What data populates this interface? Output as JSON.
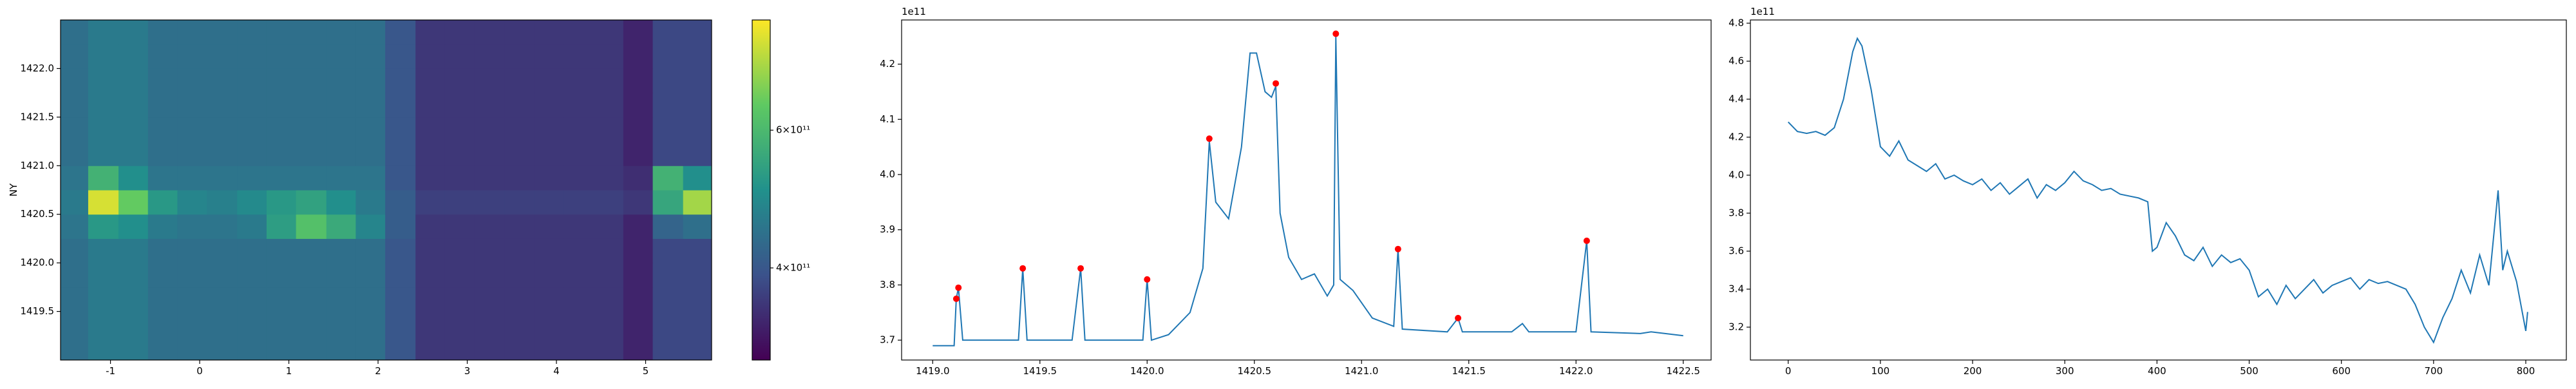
{
  "chart_data": [
    {
      "type": "heatmap",
      "ylabel": "NY",
      "xlim": [
        -1.56,
        5.74
      ],
      "ylim": [
        1419.0,
        1422.5
      ],
      "xticks": [
        -1,
        0,
        1,
        2,
        3,
        4,
        5
      ],
      "yticks": [
        1419.5,
        {
          "value": 1420,
          "label": "1420.0"
        },
        1420.5,
        {
          "value": 1421,
          "label": "1421.0"
        },
        1421.5,
        {
          "value": 1422,
          "label": "1422.0"
        }
      ],
      "xbins": [
        -1.56,
        -1.25,
        -0.91,
        -0.58,
        -0.25,
        0.08,
        0.42,
        0.75,
        1.08,
        1.42,
        1.75,
        2.08,
        2.42,
        2.75,
        3.08,
        3.42,
        3.75,
        4.08,
        4.42,
        4.75,
        5.08,
        5.42,
        5.74
      ],
      "ybins": [
        1419.0,
        1419.25,
        1419.5,
        1419.75,
        1420.0,
        1420.25,
        1420.5,
        1420.75,
        1421.0,
        1421.25,
        1421.5,
        1421.75,
        1422.0,
        1422.25,
        1422.5
      ],
      "clim": [
        305000000000.0,
        830000000000.0
      ],
      "color_scale": "log",
      "colormap": "viridis",
      "cticks": [
        {
          "value": 400000000000.0,
          "label": "4×10¹¹"
        },
        {
          "value": 600000000000.0,
          "label": "6×10¹¹"
        }
      ],
      "z": [
        [
          440000000000.0,
          460000000000.0,
          460000000000.0,
          440000000000.0,
          440000000000.0,
          440000000000.0,
          440000000000.0,
          440000000000.0,
          440000000000.0,
          440000000000.0,
          440000000000.0,
          400000000000.0,
          360000000000.0,
          360000000000.0,
          360000000000.0,
          360000000000.0,
          360000000000.0,
          360000000000.0,
          360000000000.0,
          340000000000.0,
          380000000000.0,
          380000000000.0
        ],
        [
          440000000000.0,
          460000000000.0,
          460000000000.0,
          440000000000.0,
          440000000000.0,
          440000000000.0,
          440000000000.0,
          440000000000.0,
          440000000000.0,
          440000000000.0,
          440000000000.0,
          400000000000.0,
          360000000000.0,
          360000000000.0,
          360000000000.0,
          360000000000.0,
          360000000000.0,
          360000000000.0,
          360000000000.0,
          340000000000.0,
          380000000000.0,
          380000000000.0
        ],
        [
          440000000000.0,
          460000000000.0,
          460000000000.0,
          440000000000.0,
          440000000000.0,
          440000000000.0,
          440000000000.0,
          440000000000.0,
          440000000000.0,
          440000000000.0,
          440000000000.0,
          400000000000.0,
          360000000000.0,
          360000000000.0,
          360000000000.0,
          360000000000.0,
          360000000000.0,
          360000000000.0,
          360000000000.0,
          340000000000.0,
          380000000000.0,
          380000000000.0
        ],
        [
          440000000000.0,
          460000000000.0,
          460000000000.0,
          440000000000.0,
          440000000000.0,
          440000000000.0,
          440000000000.0,
          440000000000.0,
          440000000000.0,
          440000000000.0,
          440000000000.0,
          400000000000.0,
          360000000000.0,
          360000000000.0,
          360000000000.0,
          360000000000.0,
          360000000000.0,
          360000000000.0,
          360000000000.0,
          340000000000.0,
          380000000000.0,
          380000000000.0
        ],
        [
          440000000000.0,
          460000000000.0,
          460000000000.0,
          440000000000.0,
          440000000000.0,
          440000000000.0,
          440000000000.0,
          440000000000.0,
          440000000000.0,
          440000000000.0,
          440000000000.0,
          400000000000.0,
          360000000000.0,
          360000000000.0,
          360000000000.0,
          360000000000.0,
          360000000000.0,
          360000000000.0,
          360000000000.0,
          340000000000.0,
          380000000000.0,
          380000000000.0
        ],
        [
          450000000000.0,
          520000000000.0,
          500000000000.0,
          460000000000.0,
          450000000000.0,
          450000000000.0,
          460000000000.0,
          530000000000.0,
          620000000000.0,
          560000000000.0,
          480000000000.0,
          410000000000.0,
          360000000000.0,
          360000000000.0,
          360000000000.0,
          360000000000.0,
          360000000000.0,
          360000000000.0,
          360000000000.0,
          340000000000.0,
          420000000000.0,
          440000000000.0
        ],
        [
          460000000000.0,
          780000000000.0,
          650000000000.0,
          520000000000.0,
          480000000000.0,
          470000000000.0,
          490000000000.0,
          520000000000.0,
          540000000000.0,
          500000000000.0,
          460000000000.0,
          410000000000.0,
          370000000000.0,
          370000000000.0,
          370000000000.0,
          370000000000.0,
          370000000000.0,
          370000000000.0,
          370000000000.0,
          360000000000.0,
          550000000000.0,
          720000000000.0
        ],
        [
          450000000000.0,
          580000000000.0,
          500000000000.0,
          450000000000.0,
          450000000000.0,
          450000000000.0,
          450000000000.0,
          450000000000.0,
          450000000000.0,
          450000000000.0,
          450000000000.0,
          400000000000.0,
          360000000000.0,
          360000000000.0,
          360000000000.0,
          360000000000.0,
          360000000000.0,
          360000000000.0,
          360000000000.0,
          350000000000.0,
          580000000000.0,
          500000000000.0
        ],
        [
          440000000000.0,
          460000000000.0,
          460000000000.0,
          440000000000.0,
          440000000000.0,
          440000000000.0,
          440000000000.0,
          440000000000.0,
          440000000000.0,
          440000000000.0,
          440000000000.0,
          400000000000.0,
          360000000000.0,
          360000000000.0,
          360000000000.0,
          360000000000.0,
          360000000000.0,
          360000000000.0,
          360000000000.0,
          340000000000.0,
          380000000000.0,
          380000000000.0
        ],
        [
          440000000000.0,
          460000000000.0,
          460000000000.0,
          440000000000.0,
          440000000000.0,
          440000000000.0,
          440000000000.0,
          440000000000.0,
          440000000000.0,
          440000000000.0,
          440000000000.0,
          400000000000.0,
          360000000000.0,
          360000000000.0,
          360000000000.0,
          360000000000.0,
          360000000000.0,
          360000000000.0,
          360000000000.0,
          340000000000.0,
          380000000000.0,
          380000000000.0
        ],
        [
          440000000000.0,
          460000000000.0,
          460000000000.0,
          440000000000.0,
          440000000000.0,
          440000000000.0,
          440000000000.0,
          440000000000.0,
          440000000000.0,
          440000000000.0,
          440000000000.0,
          400000000000.0,
          360000000000.0,
          360000000000.0,
          360000000000.0,
          360000000000.0,
          360000000000.0,
          360000000000.0,
          360000000000.0,
          340000000000.0,
          380000000000.0,
          380000000000.0
        ],
        [
          440000000000.0,
          460000000000.0,
          460000000000.0,
          440000000000.0,
          440000000000.0,
          440000000000.0,
          440000000000.0,
          440000000000.0,
          440000000000.0,
          440000000000.0,
          440000000000.0,
          400000000000.0,
          360000000000.0,
          360000000000.0,
          360000000000.0,
          360000000000.0,
          360000000000.0,
          360000000000.0,
          360000000000.0,
          340000000000.0,
          380000000000.0,
          380000000000.0
        ],
        [
          440000000000.0,
          460000000000.0,
          460000000000.0,
          440000000000.0,
          440000000000.0,
          440000000000.0,
          440000000000.0,
          440000000000.0,
          440000000000.0,
          440000000000.0,
          440000000000.0,
          400000000000.0,
          360000000000.0,
          360000000000.0,
          360000000000.0,
          360000000000.0,
          360000000000.0,
          360000000000.0,
          360000000000.0,
          340000000000.0,
          380000000000.0,
          380000000000.0
        ],
        [
          440000000000.0,
          460000000000.0,
          460000000000.0,
          440000000000.0,
          440000000000.0,
          440000000000.0,
          440000000000.0,
          440000000000.0,
          440000000000.0,
          440000000000.0,
          440000000000.0,
          400000000000.0,
          360000000000.0,
          360000000000.0,
          360000000000.0,
          360000000000.0,
          360000000000.0,
          360000000000.0,
          360000000000.0,
          340000000000.0,
          380000000000.0,
          380000000000.0
        ]
      ]
    },
    {
      "type": "line",
      "offset_text": "1e11",
      "xlim": [
        1418.855,
        1422.63
      ],
      "ylim": [
        3.664,
        4.28
      ],
      "xticks": [
        {
          "value": 1419,
          "label": "1419.0"
        },
        1419.5,
        {
          "value": 1420,
          "label": "1420.0"
        },
        1420.5,
        {
          "value": 1421,
          "label": "1421.0"
        },
        1421.5,
        {
          "value": 1422,
          "label": "1422.0"
        },
        1422.5
      ],
      "yticks": [
        3.7,
        3.8,
        3.9,
        {
          "value": 4,
          "label": "4.0"
        },
        4.1,
        4.2
      ],
      "series": [
        {
          "color": "#1f77b4",
          "x": [
            1419.0,
            1419.1,
            1419.11,
            1419.12,
            1419.14,
            1419.4,
            1419.42,
            1419.44,
            1419.65,
            1419.69,
            1419.71,
            1419.98,
            1420.0,
            1420.02,
            1420.1,
            1420.2,
            1420.26,
            1420.29,
            1420.32,
            1420.38,
            1420.44,
            1420.48,
            1420.51,
            1420.55,
            1420.58,
            1420.6,
            1420.62,
            1420.66,
            1420.72,
            1420.78,
            1420.84,
            1420.87,
            1420.88,
            1420.9,
            1420.96,
            1421.05,
            1421.15,
            1421.17,
            1421.19,
            1421.4,
            1421.45,
            1421.47,
            1421.7,
            1421.75,
            1421.78,
            1422.0,
            1422.05,
            1422.07,
            1422.3,
            1422.35,
            1422.5
          ],
          "values": [
            3.69,
            3.69,
            3.775,
            3.795,
            3.7,
            3.7,
            3.83,
            3.7,
            3.7,
            3.83,
            3.7,
            3.7,
            3.81,
            3.7,
            3.71,
            3.75,
            3.83,
            4.06,
            3.95,
            3.92,
            4.05,
            4.22,
            4.22,
            4.15,
            4.14,
            4.16,
            3.93,
            3.85,
            3.81,
            3.82,
            3.78,
            3.8,
            4.25,
            3.81,
            3.79,
            3.74,
            3.725,
            3.865,
            3.72,
            3.715,
            3.74,
            3.715,
            3.715,
            3.73,
            3.715,
            3.715,
            3.88,
            3.715,
            3.712,
            3.715,
            3.708
          ]
        },
        {
          "color": "#ff0000",
          "marker": "o",
          "x": [
            1419.11,
            1419.12,
            1419.42,
            1419.69,
            1420.0,
            1420.29,
            1420.6,
            1420.88,
            1421.17,
            1421.45,
            1422.05
          ],
          "values": [
            3.775,
            3.795,
            3.83,
            3.83,
            3.81,
            4.065,
            4.165,
            4.255,
            3.865,
            3.74,
            3.88
          ]
        }
      ]
    },
    {
      "type": "line",
      "offset_text": "1e11",
      "xlim": [
        -41,
        844
      ],
      "ylim": [
        3.027,
        4.817
      ],
      "xticks": [
        0,
        100,
        200,
        300,
        400,
        500,
        600,
        700,
        800
      ],
      "yticks": [
        3.2,
        3.4,
        3.6,
        3.8,
        {
          "value": 4,
          "label": "4.0"
        },
        4.2,
        4.4,
        4.6,
        4.8
      ],
      "series": [
        {
          "color": "#1f77b4",
          "x": [
            0,
            10,
            20,
            30,
            40,
            50,
            60,
            70,
            75,
            80,
            90,
            100,
            110,
            120,
            130,
            140,
            150,
            160,
            170,
            180,
            190,
            200,
            210,
            220,
            230,
            240,
            250,
            260,
            270,
            280,
            290,
            300,
            310,
            320,
            330,
            340,
            350,
            360,
            370,
            380,
            390,
            395,
            400,
            410,
            420,
            430,
            440,
            450,
            460,
            470,
            480,
            490,
            500,
            510,
            520,
            530,
            540,
            550,
            560,
            570,
            580,
            590,
            600,
            610,
            620,
            630,
            640,
            650,
            660,
            670,
            680,
            690,
            700,
            710,
            720,
            730,
            740,
            750,
            760,
            770,
            775,
            780,
            790,
            800,
            802
          ],
          "values": [
            4.28,
            4.23,
            4.22,
            4.23,
            4.21,
            4.25,
            4.4,
            4.65,
            4.72,
            4.68,
            4.45,
            4.15,
            4.1,
            4.18,
            4.08,
            4.05,
            4.02,
            4.06,
            3.98,
            4.0,
            3.97,
            3.95,
            3.98,
            3.92,
            3.96,
            3.9,
            3.94,
            3.98,
            3.88,
            3.95,
            3.92,
            3.96,
            4.02,
            3.97,
            3.95,
            3.92,
            3.93,
            3.9,
            3.89,
            3.88,
            3.86,
            3.6,
            3.62,
            3.75,
            3.68,
            3.58,
            3.55,
            3.62,
            3.52,
            3.58,
            3.54,
            3.56,
            3.5,
            3.36,
            3.4,
            3.32,
            3.42,
            3.35,
            3.4,
            3.45,
            3.38,
            3.42,
            3.44,
            3.46,
            3.4,
            3.45,
            3.43,
            3.44,
            3.42,
            3.4,
            3.32,
            3.2,
            3.12,
            3.25,
            3.35,
            3.5,
            3.38,
            3.58,
            3.42,
            3.92,
            3.5,
            3.6,
            3.44,
            3.18,
            3.28
          ]
        }
      ]
    }
  ]
}
